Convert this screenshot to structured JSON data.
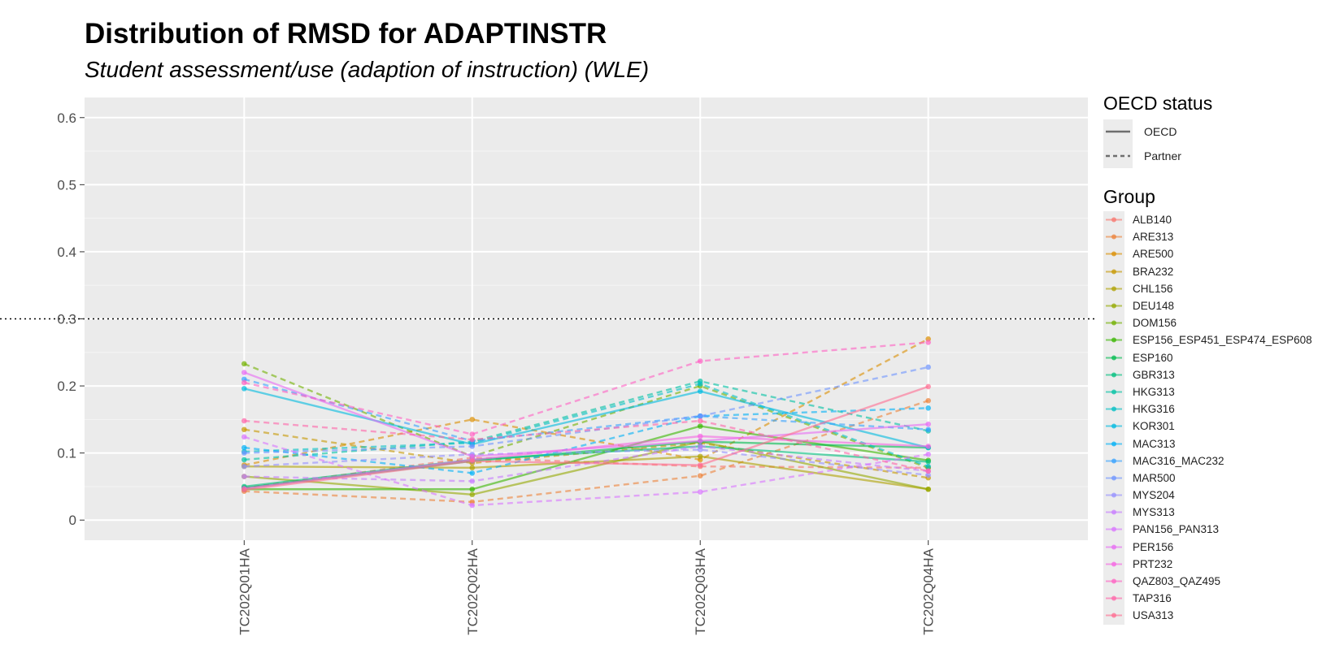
{
  "chart_data": {
    "type": "line",
    "title": "Distribution of RMSD for ADAPTINSTR",
    "subtitle": "Student assessment/use (adaption of instruction) (WLE)",
    "xlabel": "",
    "ylabel": "",
    "categories": [
      "TC202Q01HA",
      "TC202Q02HA",
      "TC202Q03HA",
      "TC202Q04HA"
    ],
    "ylim": [
      -0.03,
      0.63
    ],
    "yticks": [
      0,
      0.1,
      0.2,
      0.3,
      0.4,
      0.5,
      0.6
    ],
    "ytick_labels": [
      "0",
      "0.1",
      "0.2",
      "0.3",
      "0.4",
      "0.5",
      "0.6"
    ],
    "reference_line": 0.3,
    "grid": true,
    "legend_position": "right",
    "linetype_legend": {
      "title": "OECD status",
      "entries": [
        {
          "label": "OECD",
          "dash": "solid"
        },
        {
          "label": "Partner",
          "dash": "dashed"
        }
      ]
    },
    "group_legend_title": "Group",
    "series": [
      {
        "name": "ALB140",
        "color": "#F8766D",
        "dash": "dashed",
        "values": [
          0.048,
          0.093,
          0.08,
          0.078
        ]
      },
      {
        "name": "ARE313",
        "color": "#EC8239",
        "dash": "dashed",
        "values": [
          0.043,
          0.027,
          0.066,
          0.178
        ]
      },
      {
        "name": "ARE500",
        "color": "#DB8E00",
        "dash": "dashed",
        "values": [
          0.082,
          0.15,
          0.09,
          0.27
        ]
      },
      {
        "name": "BRA232",
        "color": "#C79800",
        "dash": "dashed",
        "values": [
          0.135,
          0.085,
          0.115,
          0.063
        ]
      },
      {
        "name": "CHL156",
        "color": "#AFA100",
        "dash": "solid",
        "values": [
          0.08,
          0.078,
          0.095,
          0.046
        ]
      },
      {
        "name": "DEU148",
        "color": "#94A900",
        "dash": "solid",
        "values": [
          0.065,
          0.038,
          0.117,
          0.046
        ]
      },
      {
        "name": "DOM156",
        "color": "#72B000",
        "dash": "dashed",
        "values": [
          0.233,
          0.095,
          0.2,
          0.078
        ]
      },
      {
        "name": "ESP156_ESP451_ESP474_ESP608",
        "color": "#39B600",
        "dash": "solid",
        "values": [
          0.046,
          0.046,
          0.14,
          0.089
        ]
      },
      {
        "name": "ESP160",
        "color": "#00BB4E",
        "dash": "solid",
        "values": [
          0.048,
          0.088,
          0.117,
          0.108
        ]
      },
      {
        "name": "GBR313",
        "color": "#00BF7D",
        "dash": "solid",
        "values": [
          0.05,
          0.09,
          0.11,
          0.087
        ]
      },
      {
        "name": "HKG313",
        "color": "#00C1A3",
        "dash": "dashed",
        "values": [
          0.09,
          0.117,
          0.207,
          0.133
        ]
      },
      {
        "name": "HKG316",
        "color": "#00BFC4",
        "dash": "dashed",
        "values": [
          0.102,
          0.115,
          0.203,
          0.08
        ]
      },
      {
        "name": "KOR301",
        "color": "#00BAE0",
        "dash": "solid",
        "values": [
          0.196,
          0.113,
          0.192,
          0.108
        ]
      },
      {
        "name": "MAC313",
        "color": "#00B0F6",
        "dash": "dashed",
        "values": [
          0.108,
          0.07,
          0.155,
          0.167
        ]
      },
      {
        "name": "MAC316_MAC232",
        "color": "#35A2FF",
        "dash": "dashed",
        "values": [
          0.21,
          0.118,
          0.155,
          0.135
        ]
      },
      {
        "name": "MAR500",
        "color": "#6E94FF",
        "dash": "dashed",
        "values": [
          0.1,
          0.11,
          0.155,
          0.228
        ]
      },
      {
        "name": "MYS204",
        "color": "#9590FF",
        "dash": "dashed",
        "values": [
          0.08,
          0.098,
          0.105,
          0.067
        ]
      },
      {
        "name": "MYS313",
        "color": "#C77CFF",
        "dash": "dashed",
        "values": [
          0.065,
          0.058,
          0.11,
          0.073
        ]
      },
      {
        "name": "PAN156_PAN313",
        "color": "#D974FF",
        "dash": "dashed",
        "values": [
          0.124,
          0.022,
          0.042,
          0.098
        ]
      },
      {
        "name": "PER156",
        "color": "#E76BF3",
        "dash": "solid",
        "values": [
          0.22,
          0.095,
          0.118,
          0.143
        ]
      },
      {
        "name": "PRT232",
        "color": "#F564E3",
        "dash": "solid",
        "values": [
          0.047,
          0.09,
          0.125,
          0.11
        ]
      },
      {
        "name": "QAZ803_QAZ495",
        "color": "#FF61C3",
        "dash": "dashed",
        "values": [
          0.205,
          0.128,
          0.237,
          0.265
        ]
      },
      {
        "name": "TAP316",
        "color": "#FF64A8",
        "dash": "dashed",
        "values": [
          0.148,
          0.12,
          0.148,
          0.073
        ]
      },
      {
        "name": "USA313",
        "color": "#FF6C91",
        "dash": "solid",
        "values": [
          0.045,
          0.088,
          0.082,
          0.199
        ]
      }
    ]
  }
}
